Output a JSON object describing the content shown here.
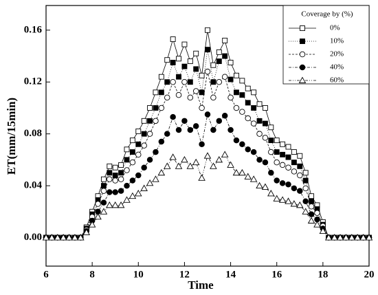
{
  "chart_data": {
    "type": "line",
    "xlabel": "Time",
    "ylabel": "ET(mm/15min)",
    "legend_title": "Coverage by (%)",
    "legend": "upper right",
    "xlim": [
      6,
      20
    ],
    "ylim": [
      -0.022,
      0.179
    ],
    "xticks": [
      6,
      8,
      10,
      12,
      14,
      16,
      18,
      20
    ],
    "yticks": [
      {
        "value": 0,
        "label": "0.00"
      },
      0.04,
      0.08,
      0.12,
      0.16
    ],
    "x": [
      6,
      6.25,
      6.5,
      6.75,
      7,
      7.25,
      7.5,
      7.75,
      8,
      8.25,
      8.5,
      8.75,
      9,
      9.25,
      9.5,
      9.75,
      10,
      10.25,
      10.5,
      10.75,
      11,
      11.25,
      11.5,
      11.75,
      12,
      12.25,
      12.5,
      12.75,
      13,
      13.25,
      13.5,
      13.75,
      14,
      14.25,
      14.5,
      14.75,
      15,
      15.25,
      15.5,
      15.75,
      16,
      16.25,
      16.5,
      16.75,
      17,
      17.25,
      17.5,
      17.75,
      18,
      18.25,
      18.5,
      18.75,
      19,
      19.25,
      19.5,
      19.75,
      20
    ],
    "series": [
      {
        "name": "0%",
        "color": "#000000",
        "marker": "square",
        "filled": false,
        "dash": "none",
        "values": [
          0,
          0,
          0,
          0,
          0,
          0,
          0,
          0.008,
          0.02,
          0.032,
          0.045,
          0.055,
          0.054,
          0.056,
          0.068,
          0.075,
          0.082,
          0.09,
          0.1,
          0.112,
          0.124,
          0.137,
          0.153,
          0.138,
          0.149,
          0.136,
          0.142,
          0.125,
          0.16,
          0.133,
          0.143,
          0.152,
          0.135,
          0.125,
          0.121,
          0.115,
          0.112,
          0.103,
          0.1,
          0.085,
          0.075,
          0.072,
          0.07,
          0.066,
          0.063,
          0.05,
          0.032,
          0.025,
          0.012,
          0,
          0,
          0,
          0,
          0,
          0,
          0,
          0
        ]
      },
      {
        "name": "10%",
        "color": "#000000",
        "marker": "square",
        "filled": true,
        "dash": "1 2",
        "values": [
          0,
          0,
          0,
          0,
          0,
          0,
          0,
          0.007,
          0.018,
          0.029,
          0.04,
          0.05,
          0.048,
          0.05,
          0.06,
          0.066,
          0.072,
          0.08,
          0.09,
          0.1,
          0.112,
          0.12,
          0.135,
          0.124,
          0.132,
          0.12,
          0.13,
          0.112,
          0.145,
          0.12,
          0.136,
          0.14,
          0.122,
          0.112,
          0.11,
          0.104,
          0.1,
          0.09,
          0.088,
          0.075,
          0.066,
          0.064,
          0.062,
          0.058,
          0.055,
          0.044,
          0.028,
          0.022,
          0.01,
          0,
          0,
          0,
          0,
          0,
          0,
          0,
          0
        ]
      },
      {
        "name": "20%",
        "color": "#000000",
        "marker": "circle",
        "filled": false,
        "dash": "3 2",
        "values": [
          0,
          0,
          0,
          0,
          0,
          0,
          0,
          0.006,
          0.016,
          0.026,
          0.036,
          0.045,
          0.044,
          0.045,
          0.052,
          0.058,
          0.064,
          0.071,
          0.08,
          0.09,
          0.1,
          0.108,
          0.12,
          0.11,
          0.12,
          0.108,
          0.113,
          0.1,
          0.128,
          0.108,
          0.12,
          0.124,
          0.108,
          0.1,
          0.097,
          0.092,
          0.088,
          0.08,
          0.077,
          0.066,
          0.058,
          0.056,
          0.054,
          0.051,
          0.048,
          0.038,
          0.024,
          0.019,
          0.009,
          0,
          0,
          0,
          0,
          0,
          0,
          0,
          0
        ]
      },
      {
        "name": "40%",
        "color": "#000000",
        "marker": "circle",
        "filled": true,
        "dash": "4 2 1 2",
        "values": [
          0,
          0,
          0,
          0,
          0,
          0,
          0,
          0.005,
          0.013,
          0.02,
          0.027,
          0.035,
          0.035,
          0.036,
          0.04,
          0.044,
          0.048,
          0.054,
          0.06,
          0.066,
          0.074,
          0.08,
          0.093,
          0.083,
          0.09,
          0.083,
          0.086,
          0.072,
          0.095,
          0.083,
          0.09,
          0.094,
          0.083,
          0.075,
          0.072,
          0.068,
          0.066,
          0.06,
          0.058,
          0.05,
          0.044,
          0.042,
          0.041,
          0.038,
          0.036,
          0.028,
          0.018,
          0.014,
          0.007,
          0,
          0,
          0,
          0,
          0,
          0,
          0,
          0
        ]
      },
      {
        "name": "60%",
        "color": "#000000",
        "marker": "triangle",
        "filled": false,
        "dash": "4 2 1 2 1 2",
        "values": [
          0,
          0,
          0,
          0,
          0,
          0,
          0,
          0.004,
          0.01,
          0.016,
          0.02,
          0.025,
          0.025,
          0.025,
          0.029,
          0.032,
          0.034,
          0.038,
          0.042,
          0.045,
          0.05,
          0.055,
          0.062,
          0.055,
          0.06,
          0.055,
          0.058,
          0.046,
          0.063,
          0.055,
          0.06,
          0.064,
          0.056,
          0.05,
          0.05,
          0.047,
          0.045,
          0.04,
          0.039,
          0.034,
          0.03,
          0.029,
          0.028,
          0.026,
          0.025,
          0.02,
          0.013,
          0.01,
          0.005,
          0,
          0,
          0,
          0,
          0,
          0,
          0,
          0
        ]
      }
    ]
  }
}
